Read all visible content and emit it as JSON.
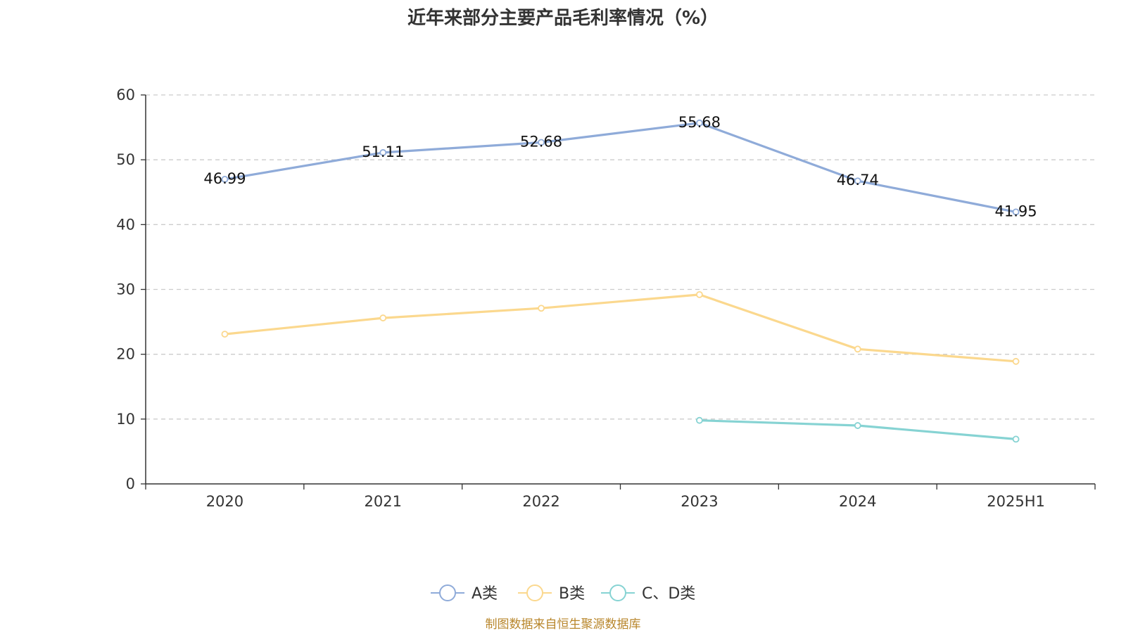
{
  "chart_data": {
    "type": "line",
    "title": "近年来部分主要产品毛利率情况（%）",
    "categories": [
      "2020",
      "2021",
      "2022",
      "2023",
      "2024",
      "2025H1"
    ],
    "ylim": [
      0,
      60
    ],
    "yticks": [
      "0",
      "10",
      "20",
      "30",
      "40",
      "50",
      "60"
    ],
    "grid": true,
    "legend_position": "bottom-center",
    "series": [
      {
        "name": "A类",
        "color": "#8fabd9",
        "values": [
          46.99,
          51.11,
          52.68,
          55.68,
          46.74,
          41.95
        ],
        "labels": [
          "46.99",
          "51.11",
          "52.68",
          "55.68",
          "46.74",
          "41.95"
        ]
      },
      {
        "name": "B类",
        "color": "#fbd88e",
        "values": [
          23.1,
          25.6,
          27.1,
          29.2,
          20.8,
          18.9
        ]
      },
      {
        "name": "C、D类",
        "color": "#86d3d3",
        "values": [
          null,
          null,
          null,
          9.8,
          9.0,
          6.9
        ]
      }
    ],
    "source": "制图数据来自恒生聚源数据库"
  }
}
